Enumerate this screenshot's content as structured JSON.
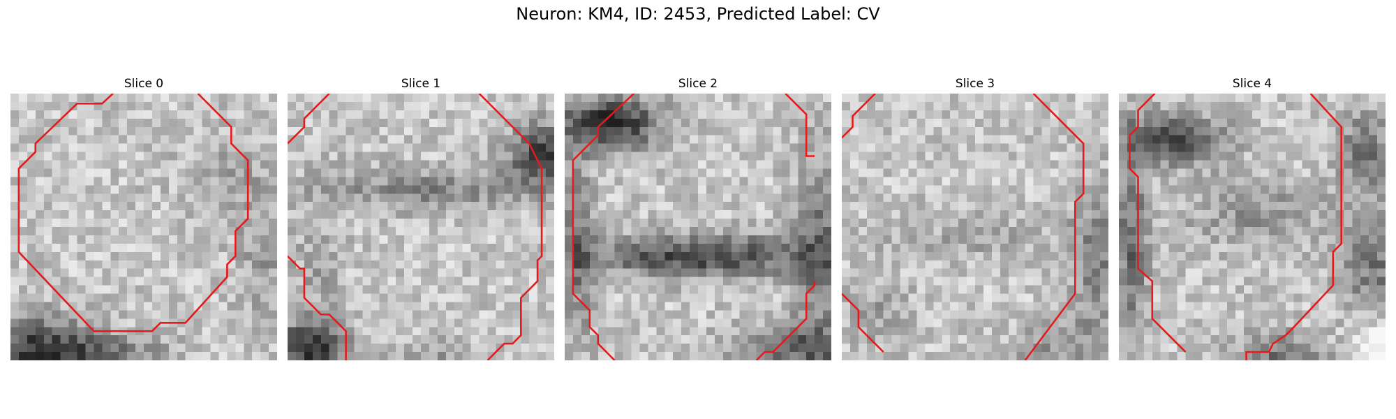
{
  "figure": {
    "title": "Neuron: KM4, ID: 2453, Predicted Label: CV"
  },
  "colors": {
    "contour": "#e41a1c",
    "background": "#ffffff",
    "colormap": "gray"
  },
  "slices": [
    {
      "title": "Slice 0"
    },
    {
      "title": "Slice 1"
    },
    {
      "title": "Slice 2"
    },
    {
      "title": "Slice 3"
    },
    {
      "title": "Slice 4"
    }
  ]
}
